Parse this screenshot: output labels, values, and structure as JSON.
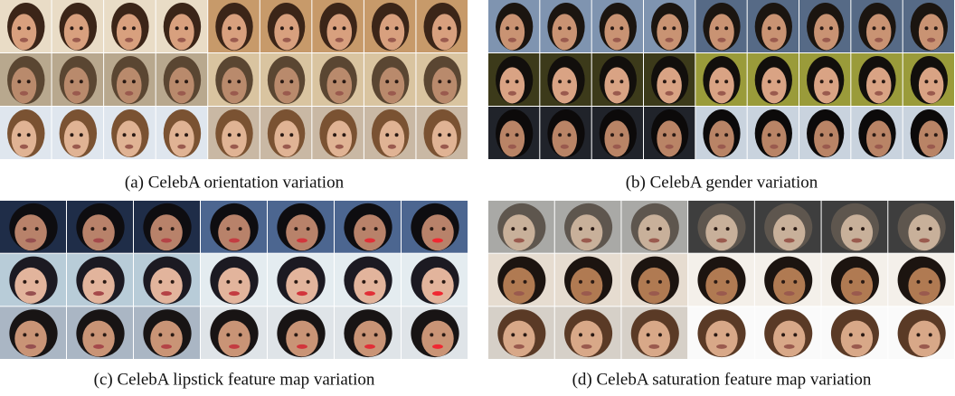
{
  "figures": [
    {
      "caption": "(a) CelebA orientation variation"
    },
    {
      "caption": "(b) CelebA gender variation"
    },
    {
      "caption": "(c) CelebA lipstick feature map variation"
    },
    {
      "caption": "(d) CelebA saturation feature map variation"
    }
  ]
}
